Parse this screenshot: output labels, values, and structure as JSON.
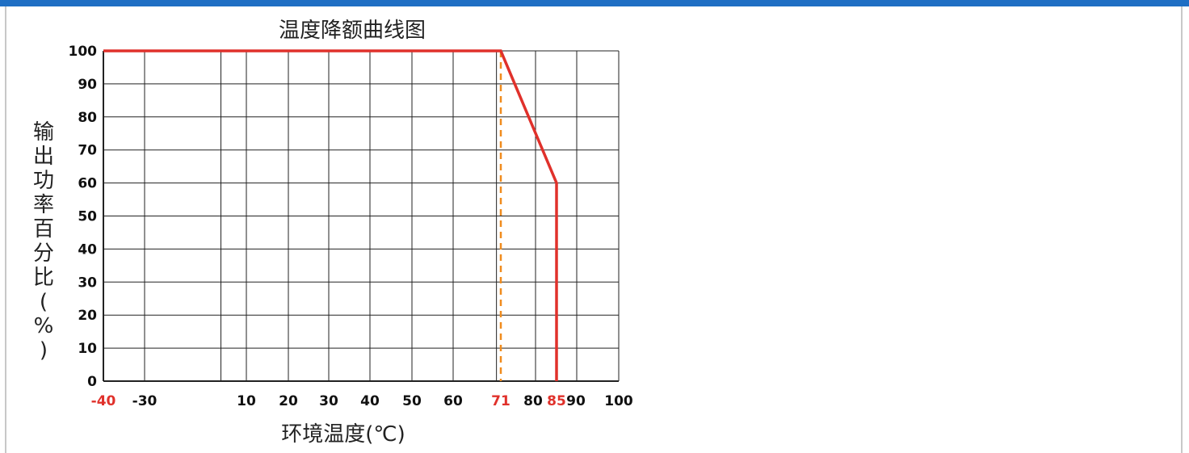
{
  "chart_data": {
    "type": "line",
    "title": "温度降额曲线图",
    "xlabel": "环境温度(℃)",
    "ylabel": "输出功率百分比(%)",
    "xlim": [
      -40,
      100
    ],
    "ylim": [
      0,
      100
    ],
    "x_ticks": [
      -40,
      -30,
      10,
      20,
      30,
      40,
      50,
      60,
      71,
      80,
      85,
      90,
      100
    ],
    "x_tick_labels": [
      "-40",
      "-30",
      "10",
      "20",
      "30",
      "40",
      "50",
      "60",
      "71",
      "80",
      "85",
      "90",
      "100"
    ],
    "x_highlight_ticks": [
      "-40",
      "71",
      "85"
    ],
    "y_ticks": [
      0,
      10,
      20,
      30,
      40,
      50,
      60,
      70,
      80,
      90,
      100
    ],
    "y_tick_labels": [
      "0",
      "10",
      "20",
      "30",
      "40",
      "50",
      "60",
      "70",
      "80",
      "90",
      "100"
    ],
    "grid": true,
    "series": [
      {
        "x": [
          -40,
          71,
          85,
          85
        ],
        "y": [
          100,
          100,
          60,
          0
        ],
        "color": "#e0312b",
        "style": "solid"
      }
    ],
    "reference_lines": [
      {
        "x": 71,
        "y_from": 0,
        "y_to": 100,
        "color": "#f08c1e",
        "style": "dashed"
      }
    ]
  },
  "colors": {
    "top_bar": "#1f6fc4",
    "grid": "#222222",
    "derating_line": "#e0312b",
    "reference_line": "#f08c1e",
    "highlight_tick": "#e0312b"
  }
}
